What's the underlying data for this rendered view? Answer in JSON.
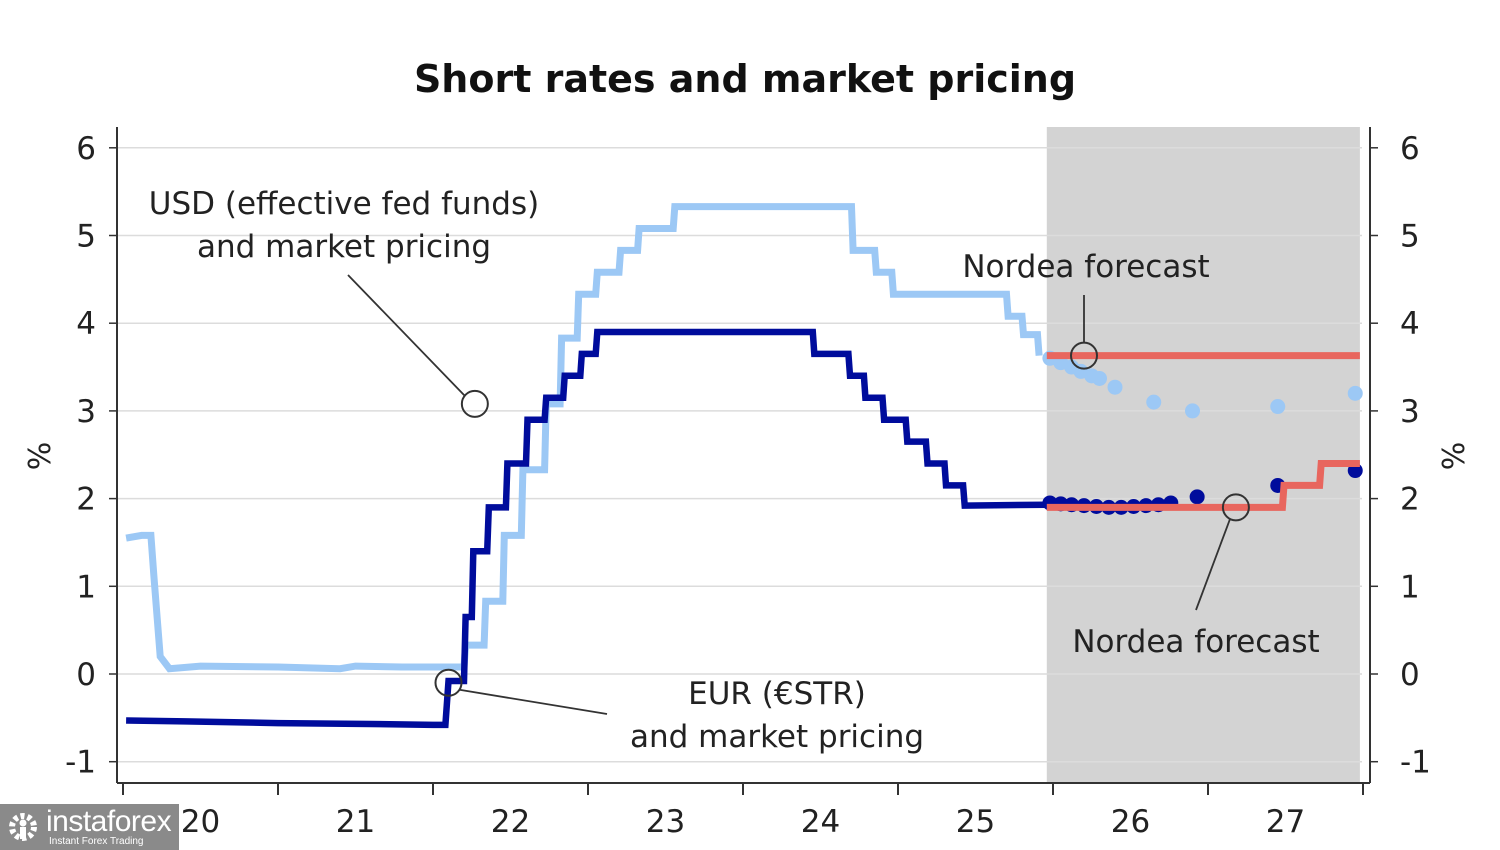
{
  "chart_data": {
    "type": "line",
    "title": "Short rates and market pricing",
    "xlabel": "",
    "ylabel": "%",
    "ylabel_right": "%",
    "ylim": [
      -1,
      6
    ],
    "xlim": [
      2020.0,
      2028.0
    ],
    "grid": true,
    "yticks": [
      "-1",
      "0",
      "1",
      "2",
      "3",
      "4",
      "5",
      "6"
    ],
    "yticks_values": [
      -1,
      0,
      1,
      2,
      3,
      4,
      5,
      6
    ],
    "xticks": [
      "20",
      "21",
      "22",
      "23",
      "24",
      "25",
      "26",
      "27"
    ],
    "xticks_values": [
      2020,
      2021,
      2022,
      2023,
      2024,
      2025,
      2026,
      2027
    ],
    "forecast_shading": {
      "from": 2025.96,
      "to": 2027.98,
      "color": "#d3d3d3"
    },
    "series": [
      {
        "name": "USD (effective fed funds)",
        "color": "#9cc8f5",
        "style": "step",
        "points": [
          [
            2020.02,
            1.55
          ],
          [
            2020.12,
            1.58
          ],
          [
            2020.18,
            1.58
          ],
          [
            2020.2,
            1.1
          ],
          [
            2020.22,
            0.65
          ],
          [
            2020.24,
            0.2
          ],
          [
            2020.3,
            0.06
          ],
          [
            2020.5,
            0.09
          ],
          [
            2021.0,
            0.08
          ],
          [
            2021.4,
            0.06
          ],
          [
            2021.5,
            0.09
          ],
          [
            2021.8,
            0.08
          ],
          [
            2022.2,
            0.08
          ],
          [
            2022.21,
            0.33
          ],
          [
            2022.33,
            0.33
          ],
          [
            2022.34,
            0.83
          ],
          [
            2022.45,
            0.83
          ],
          [
            2022.46,
            1.58
          ],
          [
            2022.57,
            1.58
          ],
          [
            2022.58,
            2.33
          ],
          [
            2022.72,
            2.33
          ],
          [
            2022.73,
            3.08
          ],
          [
            2022.82,
            3.08
          ],
          [
            2022.83,
            3.83
          ],
          [
            2022.93,
            3.83
          ],
          [
            2022.94,
            4.33
          ],
          [
            2023.05,
            4.33
          ],
          [
            2023.06,
            4.58
          ],
          [
            2023.2,
            4.58
          ],
          [
            2023.21,
            4.83
          ],
          [
            2023.32,
            4.83
          ],
          [
            2023.33,
            5.08
          ],
          [
            2023.55,
            5.08
          ],
          [
            2023.56,
            5.33
          ],
          [
            2024.7,
            5.33
          ],
          [
            2024.71,
            4.83
          ],
          [
            2024.85,
            4.83
          ],
          [
            2024.86,
            4.58
          ],
          [
            2024.96,
            4.58
          ],
          [
            2024.97,
            4.33
          ],
          [
            2025.7,
            4.33
          ],
          [
            2025.71,
            4.08
          ],
          [
            2025.8,
            4.08
          ],
          [
            2025.81,
            3.87
          ],
          [
            2025.9,
            3.87
          ],
          [
            2025.91,
            3.63
          ]
        ]
      },
      {
        "name": "USD market pricing",
        "color": "#9cc8f5",
        "style": "dots",
        "points": [
          [
            2025.98,
            3.6
          ],
          [
            2026.05,
            3.55
          ],
          [
            2026.12,
            3.5
          ],
          [
            2026.18,
            3.45
          ],
          [
            2026.25,
            3.4
          ],
          [
            2026.3,
            3.37
          ],
          [
            2026.4,
            3.27
          ],
          [
            2026.65,
            3.1
          ],
          [
            2026.9,
            3.0
          ],
          [
            2027.45,
            3.05
          ],
          [
            2027.95,
            3.2
          ]
        ]
      },
      {
        "name": "EUR (€STR)",
        "color": "#000c9c",
        "style": "step",
        "points": [
          [
            2020.02,
            -0.53
          ],
          [
            2020.4,
            -0.54
          ],
          [
            2021.0,
            -0.56
          ],
          [
            2021.6,
            -0.57
          ],
          [
            2022.0,
            -0.58
          ],
          [
            2022.06,
            -0.58
          ],
          [
            2022.08,
            -0.58
          ],
          [
            2022.1,
            -0.08
          ],
          [
            2022.2,
            -0.08
          ],
          [
            2022.21,
            0.65
          ],
          [
            2022.25,
            0.65
          ],
          [
            2022.26,
            1.4
          ],
          [
            2022.35,
            1.4
          ],
          [
            2022.36,
            1.9
          ],
          [
            2022.47,
            1.9
          ],
          [
            2022.48,
            2.4
          ],
          [
            2022.6,
            2.4
          ],
          [
            2022.61,
            2.9
          ],
          [
            2022.72,
            2.9
          ],
          [
            2022.73,
            3.15
          ],
          [
            2022.84,
            3.15
          ],
          [
            2022.85,
            3.4
          ],
          [
            2022.95,
            3.4
          ],
          [
            2022.96,
            3.65
          ],
          [
            2023.05,
            3.65
          ],
          [
            2023.06,
            3.9
          ],
          [
            2024.45,
            3.9
          ],
          [
            2024.46,
            3.65
          ],
          [
            2024.68,
            3.65
          ],
          [
            2024.69,
            3.4
          ],
          [
            2024.78,
            3.4
          ],
          [
            2024.79,
            3.15
          ],
          [
            2024.9,
            3.15
          ],
          [
            2024.91,
            2.9
          ],
          [
            2025.05,
            2.9
          ],
          [
            2025.06,
            2.65
          ],
          [
            2025.18,
            2.65
          ],
          [
            2025.19,
            2.4
          ],
          [
            2025.3,
            2.4
          ],
          [
            2025.31,
            2.15
          ],
          [
            2025.42,
            2.15
          ],
          [
            2025.43,
            1.92
          ],
          [
            2025.96,
            1.93
          ]
        ]
      },
      {
        "name": "EUR market pricing",
        "color": "#000c9c",
        "style": "dots",
        "points": [
          [
            2025.98,
            1.95
          ],
          [
            2026.05,
            1.94
          ],
          [
            2026.12,
            1.93
          ],
          [
            2026.2,
            1.92
          ],
          [
            2026.28,
            1.91
          ],
          [
            2026.36,
            1.9
          ],
          [
            2026.44,
            1.9
          ],
          [
            2026.52,
            1.91
          ],
          [
            2026.6,
            1.92
          ],
          [
            2026.68,
            1.93
          ],
          [
            2026.76,
            1.95
          ],
          [
            2026.93,
            2.02
          ],
          [
            2027.45,
            2.15
          ],
          [
            2027.95,
            2.32
          ]
        ]
      },
      {
        "name": "Nordea forecast (USD)",
        "color": "#e8665e",
        "style": "step",
        "points": [
          [
            2025.96,
            3.63
          ],
          [
            2027.98,
            3.63
          ]
        ]
      },
      {
        "name": "Nordea forecast (EUR)",
        "color": "#e8665e",
        "style": "step",
        "points": [
          [
            2025.96,
            1.9
          ],
          [
            2027.48,
            1.9
          ],
          [
            2027.49,
            2.15
          ],
          [
            2027.72,
            2.15
          ],
          [
            2027.73,
            2.4
          ],
          [
            2027.98,
            2.4
          ]
        ]
      }
    ],
    "annotations": [
      {
        "lines": [
          "USD (effective fed funds)",
          "and market pricing"
        ],
        "target": [
          2022.27,
          3.08
        ],
        "anchor": "top-left"
      },
      {
        "lines": [
          "EUR (€STR)",
          "and market pricing"
        ],
        "target": [
          2022.1,
          -0.1
        ],
        "anchor": "bottom-center"
      },
      {
        "lines": [
          "Nordea forecast"
        ],
        "target": [
          2026.2,
          3.63
        ],
        "anchor": "top-right"
      },
      {
        "lines": [
          "Nordea forecast"
        ],
        "target": [
          2027.18,
          1.9
        ],
        "anchor": "bottom-right"
      }
    ]
  },
  "watermark": {
    "brand": "instaforex",
    "tagline": "Instant Forex Trading"
  }
}
